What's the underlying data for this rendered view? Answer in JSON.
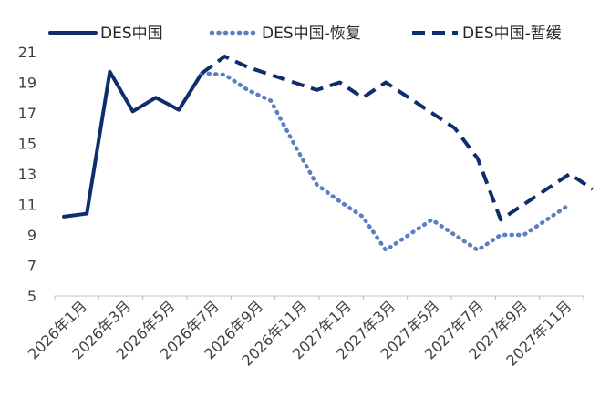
{
  "chart_data": {
    "type": "line",
    "title": "",
    "xlabel": "",
    "ylabel": "",
    "ylim": [
      5,
      21
    ],
    "yticks": [
      5,
      7,
      9,
      11,
      13,
      15,
      17,
      19,
      21
    ],
    "grid": false,
    "legend_position": "top",
    "x_tick_labels": [
      "2026年1月",
      "2026年3月",
      "2026年5月",
      "2026年7月",
      "2026年9月",
      "2026年11月",
      "2027年1月",
      "2027年3月",
      "2027年5月",
      "2027年7月",
      "2027年9月",
      "2027年11月"
    ],
    "x": [
      "2026年1月",
      "2026年2月",
      "2026年3月",
      "2026年4月",
      "2026年5月",
      "2026年6月",
      "2026年7月",
      "2026年8月",
      "2026年9月",
      "2026年10月",
      "2026年11月",
      "2026年12月",
      "2027年1月",
      "2027年2月",
      "2027年3月",
      "2027年4月",
      "2027年5月",
      "2027年6月",
      "2027年7月",
      "2027年8月",
      "2027年9月",
      "2027年10月",
      "2027年11月",
      "2027年12月"
    ],
    "series": [
      {
        "name": "DES中国",
        "color": "#0d2d6c",
        "style": "solid",
        "values": [
          10.2,
          10.4,
          19.7,
          17.1,
          18.0,
          17.2,
          19.6,
          null,
          null,
          null,
          null,
          null,
          null,
          null,
          null,
          null,
          null,
          null,
          null,
          null,
          null,
          null,
          null,
          null
        ]
      },
      {
        "name": "DES中国-恢复",
        "color": "#5b7fbf",
        "style": "dotted",
        "values": [
          null,
          null,
          null,
          null,
          null,
          null,
          19.6,
          19.5,
          18.5,
          17.8,
          15.0,
          12.3,
          11.2,
          10.2,
          8.0,
          9.0,
          10.0,
          9.0,
          8.0,
          9.0,
          9.0,
          10.0,
          11.0,
          null
        ]
      },
      {
        "name": "DES中国-暂缓",
        "color": "#0d2d6c",
        "style": "dashed",
        "values": [
          null,
          null,
          null,
          null,
          null,
          null,
          19.6,
          20.7,
          20.0,
          19.5,
          19.0,
          18.5,
          19.0,
          18.0,
          19.0,
          18.0,
          17.0,
          16.0,
          14.0,
          10.0,
          11.0,
          12.0,
          13.0,
          12.0
        ]
      }
    ]
  }
}
